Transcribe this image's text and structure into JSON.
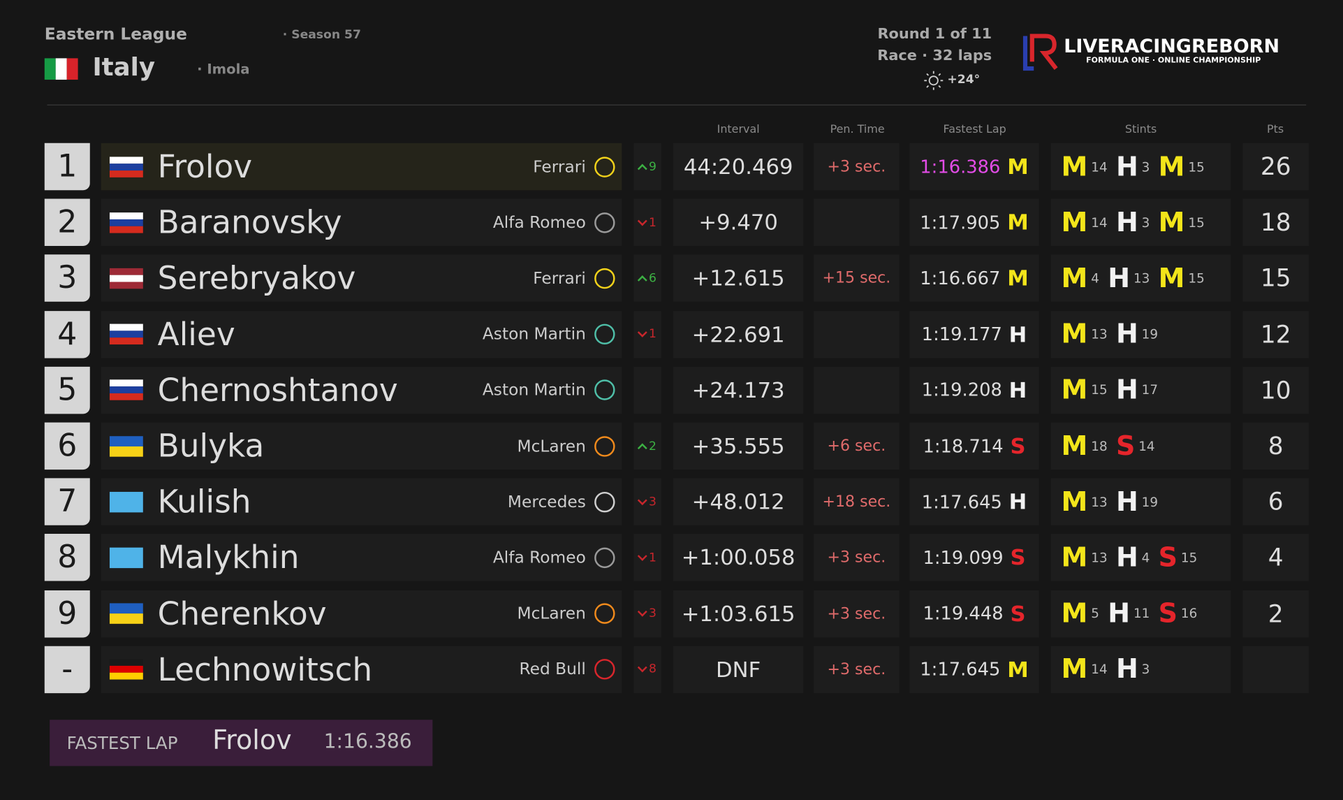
{
  "header": {
    "league": "Eastern League",
    "season": "· Season 57",
    "country": "Italy",
    "track": "· Imola",
    "round": "Round 1 of 11",
    "session": "Race · 32 laps",
    "temperature": "+24°"
  },
  "logo": {
    "name": "LIVERACINGREBORN",
    "subtitle": "FORMULA ONE · ONLINE CHAMPIONSHIP"
  },
  "tyre_colors": {
    "M": "#f3e51a",
    "H": "#f2f2f2",
    "S": "#e5252b"
  },
  "table": {
    "columns": [
      "Interval",
      "Pen. Time",
      "Fastest Lap",
      "Stints",
      "Pts"
    ],
    "rows": [
      {
        "position": "1",
        "flag": [
          "#ffffff",
          "#1c3fa0",
          "#d52b1e"
        ],
        "driver": "Frolov",
        "team": "Ferrari",
        "logo_color": "#f2d21a",
        "direction": "up",
        "change": 9,
        "interval": "44:20.469",
        "penalty": "+3 sec.",
        "fastest_lap": "1:16.386",
        "fastest_tyre": "M",
        "stints": [
          {
            "tyre": "M",
            "laps": 14
          },
          {
            "tyre": "H",
            "laps": 3
          },
          {
            "tyre": "M",
            "laps": 15
          }
        ],
        "pts": 26
      },
      {
        "position": "2",
        "flag": [
          "#ffffff",
          "#1c3fa0",
          "#d52b1e"
        ],
        "driver": "Baranovsky",
        "team": "Alfa Romeo",
        "logo_color": "#9a9a9a",
        "direction": "down",
        "change": 1,
        "interval": "+9.470",
        "fastest_lap": "1:17.905",
        "fastest_tyre": "M",
        "stints": [
          {
            "tyre": "M",
            "laps": 14
          },
          {
            "tyre": "H",
            "laps": 3
          },
          {
            "tyre": "M",
            "laps": 15
          }
        ],
        "pts": 18
      },
      {
        "position": "3",
        "flag": [
          "#9e2a36",
          "#ffffff",
          "#9e2a36"
        ],
        "driver": "Serebryakov",
        "team": "Ferrari",
        "logo_color": "#f2d21a",
        "direction": "up",
        "change": 6,
        "interval": "+12.615",
        "penalty": "+15 sec.",
        "fastest_lap": "1:16.667",
        "fastest_tyre": "M",
        "stints": [
          {
            "tyre": "M",
            "laps": 4
          },
          {
            "tyre": "H",
            "laps": 13
          },
          {
            "tyre": "M",
            "laps": 15
          }
        ],
        "pts": 15
      },
      {
        "position": "4",
        "flag": [
          "#ffffff",
          "#1c3fa0",
          "#d52b1e"
        ],
        "driver": "Aliev",
        "team": "Aston Martin",
        "logo_color": "#4fbfa8",
        "direction": "down",
        "change": 1,
        "interval": "+22.691",
        "fastest_lap": "1:19.177",
        "fastest_tyre": "H",
        "stints": [
          {
            "tyre": "M",
            "laps": 13
          },
          {
            "tyre": "H",
            "laps": 19
          }
        ],
        "pts": 12
      },
      {
        "position": "5",
        "flag": [
          "#ffffff",
          "#1c3fa0",
          "#d52b1e"
        ],
        "driver": "Chernoshtanov",
        "team": "Aston Martin",
        "logo_color": "#4fbfa8",
        "interval": "+24.173",
        "fastest_lap": "1:19.208",
        "fastest_tyre": "H",
        "stints": [
          {
            "tyre": "M",
            "laps": 15
          },
          {
            "tyre": "H",
            "laps": 17
          }
        ],
        "pts": 10
      },
      {
        "position": "6",
        "flag": [
          "#1f5fc0",
          "#f7d117"
        ],
        "driver": "Bulyka",
        "team": "McLaren",
        "logo_color": "#f08a1c",
        "direction": "up",
        "change": 2,
        "interval": "+35.555",
        "penalty": "+6 sec.",
        "fastest_lap": "1:18.714",
        "fastest_tyre": "S",
        "stints": [
          {
            "tyre": "M",
            "laps": 18
          },
          {
            "tyre": "S",
            "laps": 14
          }
        ],
        "pts": 8
      },
      {
        "position": "7",
        "flag": [
          "#4fb3e8"
        ],
        "driver": "Kulish",
        "team": "Mercedes",
        "logo_color": "#d0d0d0",
        "direction": "down",
        "change": 3,
        "interval": "+48.012",
        "penalty": "+18 sec.",
        "fastest_lap": "1:17.645",
        "fastest_tyre": "H",
        "stints": [
          {
            "tyre": "M",
            "laps": 13
          },
          {
            "tyre": "H",
            "laps": 19
          }
        ],
        "pts": 6
      },
      {
        "position": "8",
        "flag": [
          "#4fb3e8"
        ],
        "driver": "Malykhin",
        "team": "Alfa Romeo",
        "logo_color": "#9a9a9a",
        "direction": "down",
        "change": 1,
        "interval": "+1:00.058",
        "penalty": "+3 sec.",
        "fastest_lap": "1:19.099",
        "fastest_tyre": "S",
        "stints": [
          {
            "tyre": "M",
            "laps": 13
          },
          {
            "tyre": "H",
            "laps": 4
          },
          {
            "tyre": "S",
            "laps": 15
          }
        ],
        "pts": 4
      },
      {
        "position": "9",
        "flag": [
          "#1f5fc0",
          "#f7d117"
        ],
        "driver": "Cherenkov",
        "team": "McLaren",
        "logo_color": "#f08a1c",
        "direction": "down",
        "change": 3,
        "interval": "+1:03.615",
        "penalty": "+3 sec.",
        "fastest_lap": "1:19.448",
        "fastest_tyre": "S",
        "stints": [
          {
            "tyre": "M",
            "laps": 5
          },
          {
            "tyre": "H",
            "laps": 11
          },
          {
            "tyre": "S",
            "laps": 16
          }
        ],
        "pts": 2
      },
      {
        "position": "-",
        "flag": [
          "#1a1a1a",
          "#dd0000",
          "#ffce00"
        ],
        "driver": "Lechnowitsch",
        "team": "Red Bull",
        "logo_color": "#d8262c",
        "direction": "down",
        "change": 8,
        "interval": "DNF",
        "penalty": "+3 sec.",
        "fastest_lap": "1:17.645",
        "fastest_tyre": "M",
        "stints": [
          {
            "tyre": "M",
            "laps": 14
          },
          {
            "tyre": "H",
            "laps": 3
          }
        ]
      }
    ]
  },
  "fastest_lap": {
    "label": "FASTEST LAP",
    "driver": "Frolov",
    "time": "1:16.386"
  }
}
